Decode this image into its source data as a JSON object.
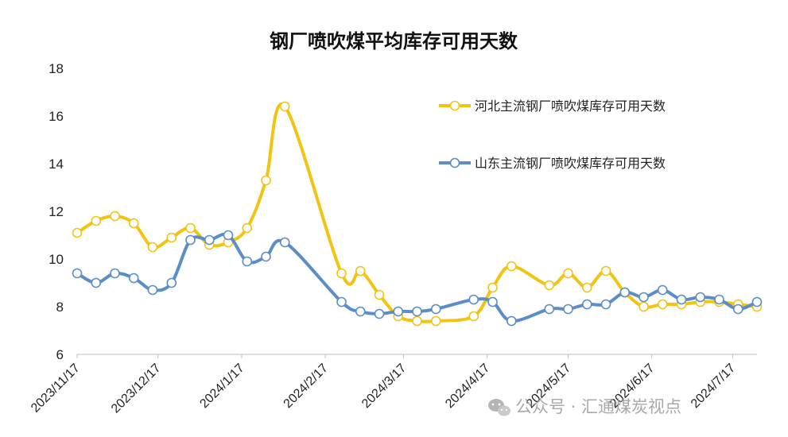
{
  "chart_data": {
    "type": "line",
    "title": "钢厂喷吹煤平均库存可用天数",
    "xlabel": "",
    "ylabel": "",
    "ylim": [
      6,
      18
    ],
    "yticks": [
      6,
      8,
      10,
      12,
      14,
      16,
      18
    ],
    "grid": false,
    "legend_position": "top-right",
    "x_tick_labels": [
      "2023/11/17",
      "2023/12/17",
      "2024/1/17",
      "2024/2/17",
      "2024/3/17",
      "2024/4/17",
      "2024/5/17",
      "2024/6/17",
      "2024/7/17"
    ],
    "series": [
      {
        "name": "河北主流钢厂喷吹煤库存可用天数",
        "color": "#F2C412",
        "points": [
          [
            "2023-11-17",
            11.1
          ],
          [
            "2023-11-24",
            11.6
          ],
          [
            "2023-12-01",
            11.8
          ],
          [
            "2023-12-08",
            11.5
          ],
          [
            "2023-12-15",
            10.5
          ],
          [
            "2023-12-22",
            10.9
          ],
          [
            "2023-12-29",
            11.3
          ],
          [
            "2024-01-05",
            10.6
          ],
          [
            "2024-01-12",
            10.7
          ],
          [
            "2024-01-19",
            11.3
          ],
          [
            "2024-01-26",
            13.3
          ],
          [
            "2024-02-02",
            16.4
          ],
          [
            "2024-02-23",
            9.4
          ],
          [
            "2024-03-01",
            9.5
          ],
          [
            "2024-03-08",
            8.5
          ],
          [
            "2024-03-15",
            7.6
          ],
          [
            "2024-03-22",
            7.4
          ],
          [
            "2024-03-29",
            7.4
          ],
          [
            "2024-04-12",
            7.6
          ],
          [
            "2024-04-19",
            8.8
          ],
          [
            "2024-04-26",
            9.7
          ],
          [
            "2024-05-10",
            8.9
          ],
          [
            "2024-05-17",
            9.4
          ],
          [
            "2024-05-24",
            8.8
          ],
          [
            "2024-05-31",
            9.5
          ],
          [
            "2024-06-07",
            8.6
          ],
          [
            "2024-06-14",
            8.0
          ],
          [
            "2024-06-21",
            8.1
          ],
          [
            "2024-06-28",
            8.1
          ],
          [
            "2024-07-05",
            8.2
          ],
          [
            "2024-07-12",
            8.2
          ],
          [
            "2024-07-19",
            8.1
          ],
          [
            "2024-07-26",
            8.0
          ]
        ]
      },
      {
        "name": "山东主流钢厂喷吹煤库存可用天数",
        "color": "#5B8EC6",
        "points": [
          [
            "2023-11-17",
            9.4
          ],
          [
            "2023-11-24",
            9.0
          ],
          [
            "2023-12-01",
            9.4
          ],
          [
            "2023-12-08",
            9.2
          ],
          [
            "2023-12-15",
            8.7
          ],
          [
            "2023-12-22",
            9.0
          ],
          [
            "2023-12-29",
            10.8
          ],
          [
            "2024-01-05",
            10.8
          ],
          [
            "2024-01-12",
            11.0
          ],
          [
            "2024-01-19",
            9.9
          ],
          [
            "2024-01-26",
            10.1
          ],
          [
            "2024-02-02",
            10.7
          ],
          [
            "2024-02-23",
            8.2
          ],
          [
            "2024-03-01",
            7.8
          ],
          [
            "2024-03-08",
            7.7
          ],
          [
            "2024-03-15",
            7.8
          ],
          [
            "2024-03-22",
            7.8
          ],
          [
            "2024-03-29",
            7.9
          ],
          [
            "2024-04-12",
            8.3
          ],
          [
            "2024-04-19",
            8.2
          ],
          [
            "2024-04-26",
            7.4
          ],
          [
            "2024-05-10",
            7.9
          ],
          [
            "2024-05-17",
            7.9
          ],
          [
            "2024-05-24",
            8.1
          ],
          [
            "2024-05-31",
            8.1
          ],
          [
            "2024-06-07",
            8.6
          ],
          [
            "2024-06-14",
            8.4
          ],
          [
            "2024-06-21",
            8.7
          ],
          [
            "2024-06-28",
            8.3
          ],
          [
            "2024-07-05",
            8.4
          ],
          [
            "2024-07-12",
            8.3
          ],
          [
            "2024-07-19",
            7.9
          ],
          [
            "2024-07-26",
            8.2
          ]
        ]
      }
    ]
  },
  "watermark": {
    "text": "公众号 · 汇通煤炭视点"
  }
}
